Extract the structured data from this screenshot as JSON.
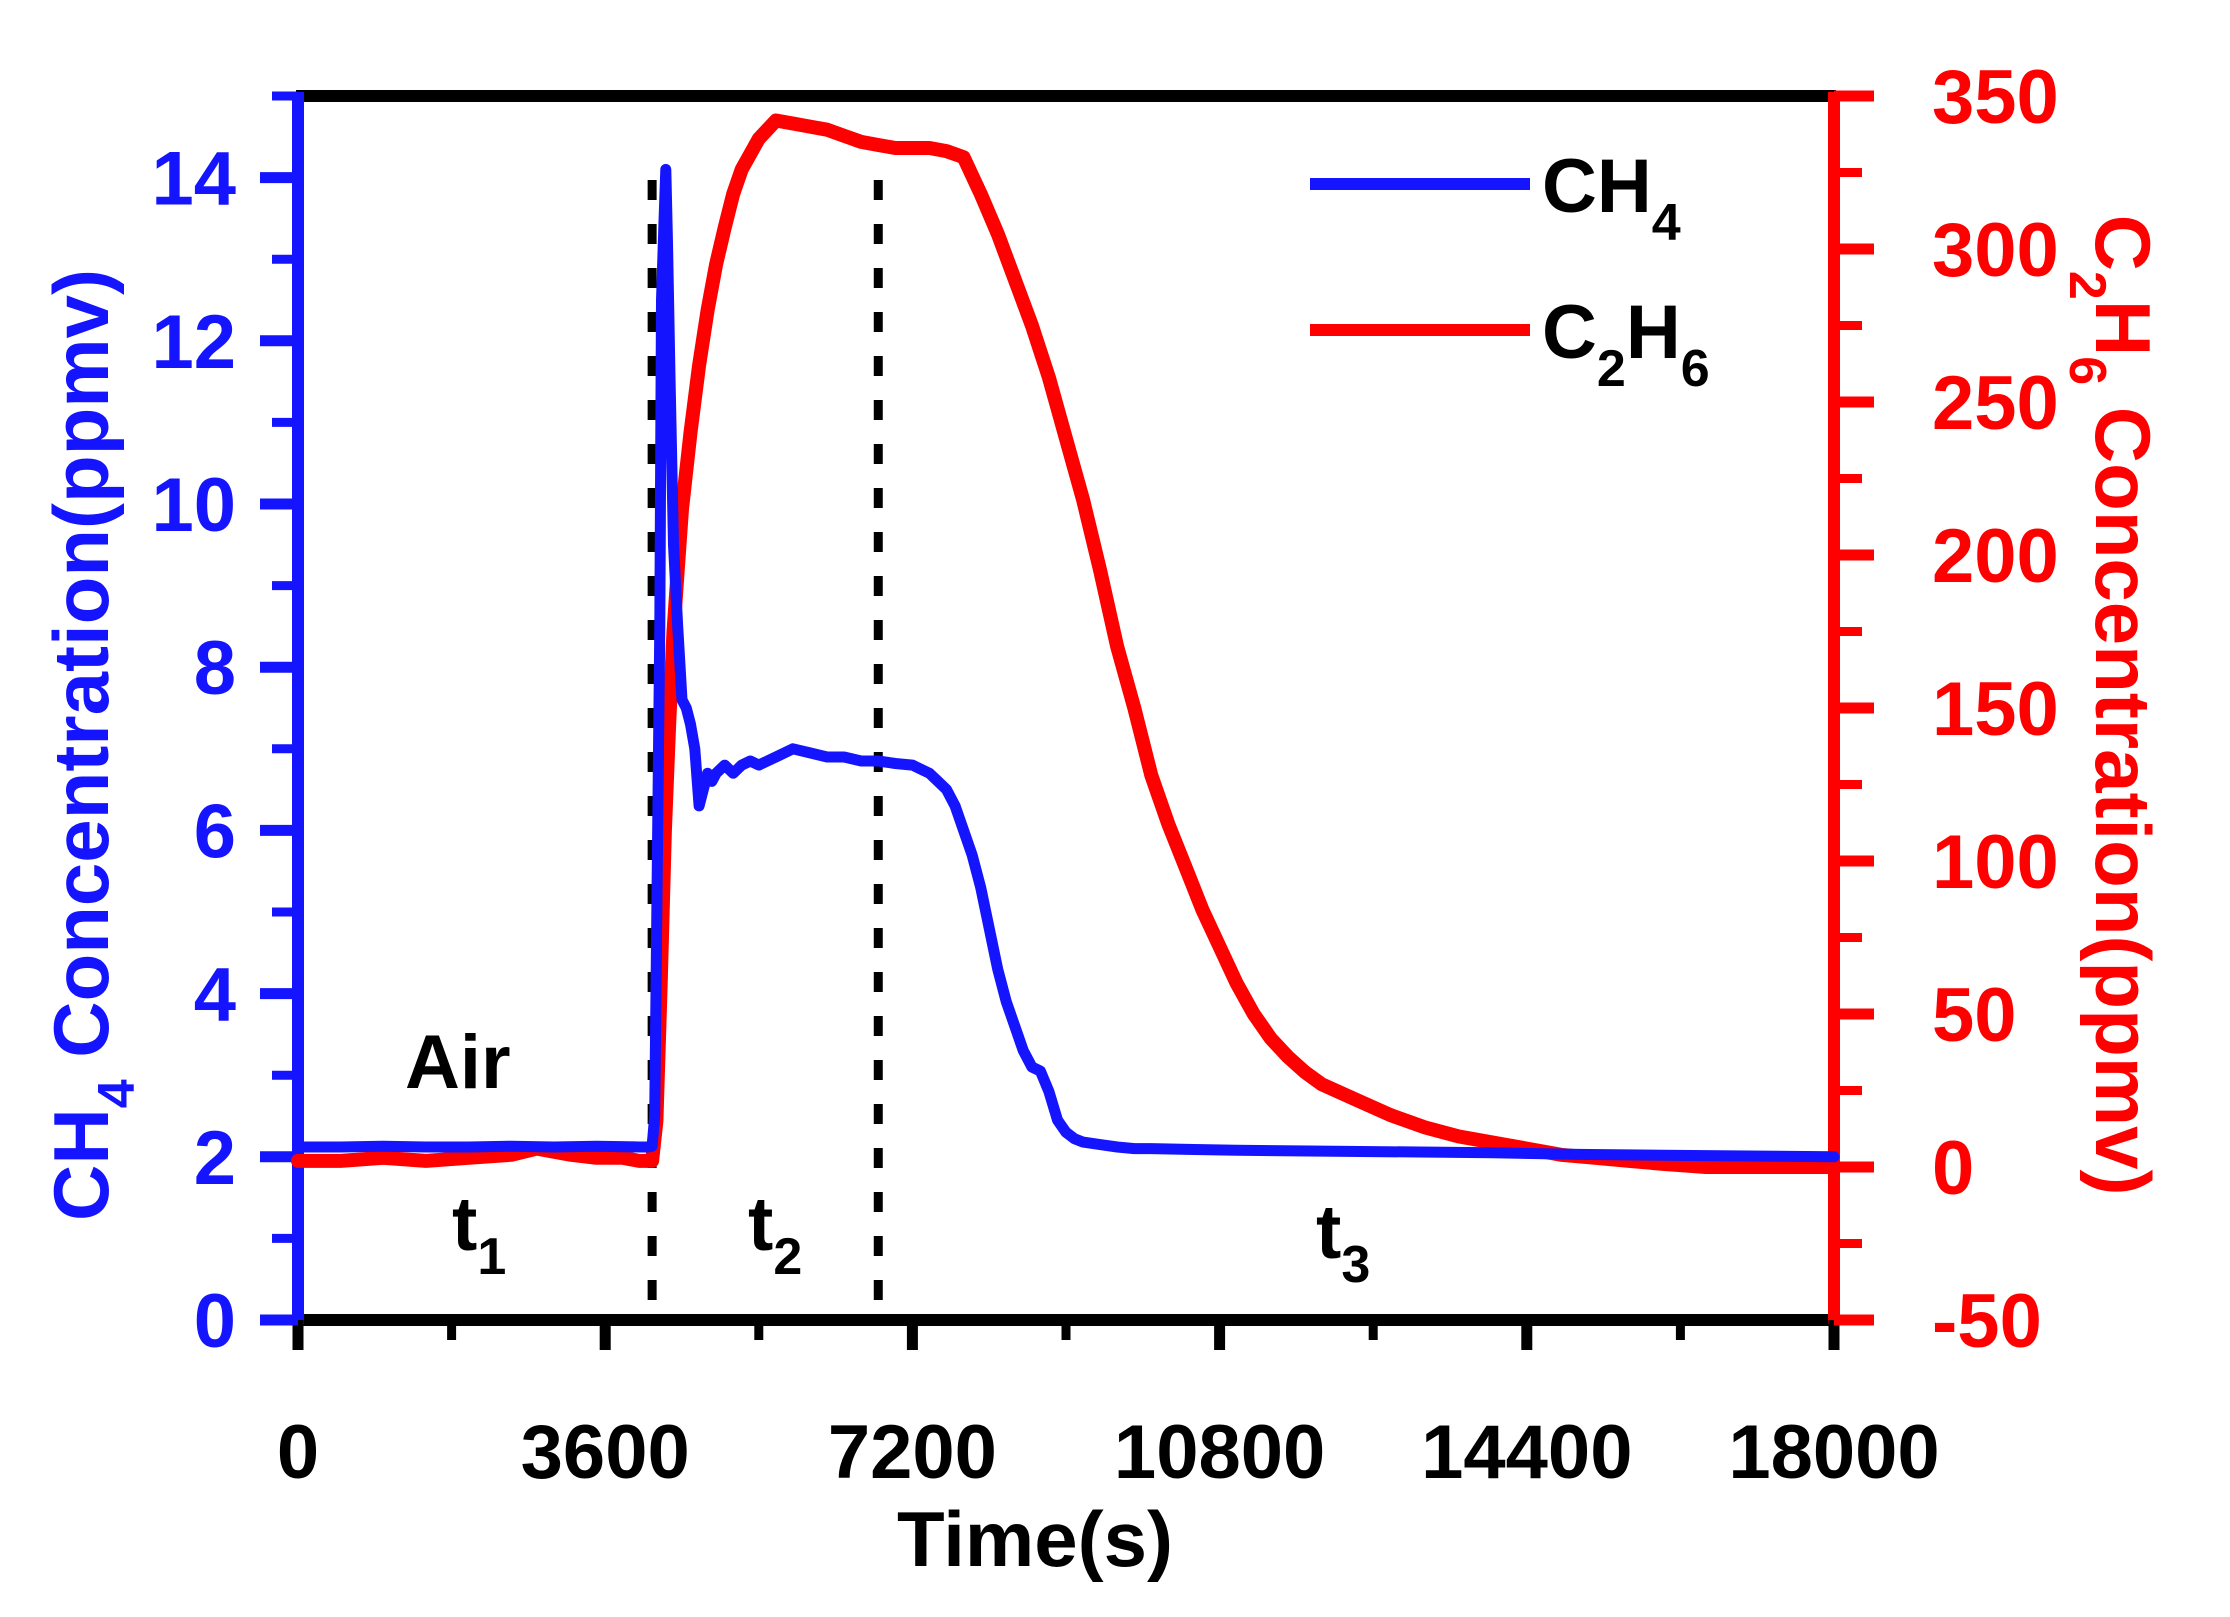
{
  "chart_data": {
    "type": "line",
    "xlabel": "Time(s)",
    "xlim": [
      0,
      18000
    ],
    "xticks": [
      "0",
      "3600",
      "7200",
      "10800",
      "14400",
      "18000"
    ],
    "xtick_values": [
      0,
      3600,
      7200,
      10800,
      14400,
      18000
    ],
    "left_axis": {
      "label_main": "CH",
      "label_sub": "4",
      "label_rest": " Concentration(ppmv)",
      "ylim": [
        0,
        15
      ],
      "ticks": [
        "0",
        "2",
        "4",
        "6",
        "8",
        "10",
        "12",
        "14"
      ],
      "tick_values": [
        0,
        2,
        4,
        6,
        8,
        10,
        12,
        14
      ],
      "color": "#1414ff"
    },
    "right_axis": {
      "label_c": "C",
      "label_sub1": "2",
      "label_h": "H",
      "label_sub2": "6",
      "label_rest": " Concentration(ppmv)",
      "ylim": [
        -50,
        350
      ],
      "ticks": [
        "-50",
        "0",
        "50",
        "100",
        "150",
        "200",
        "250",
        "300",
        "350"
      ],
      "tick_values": [
        -50,
        0,
        50,
        100,
        150,
        200,
        250,
        300,
        350
      ],
      "color": "#ff0000"
    },
    "series": [
      {
        "name": "CH4",
        "legend_main": "CH",
        "legend_sub": "4",
        "axis": "left",
        "color": "#1414ff",
        "x": [
          0,
          500,
          1000,
          1500,
          2000,
          2500,
          3000,
          3500,
          4000,
          4100,
          4150,
          4180,
          4200,
          4240,
          4260,
          4290,
          4310,
          4330,
          4360,
          4400,
          4450,
          4500,
          4550,
          4600,
          4650,
          4700,
          4750,
          4800,
          4850,
          4900,
          5000,
          5100,
          5200,
          5300,
          5400,
          5600,
          5800,
          6000,
          6200,
          6400,
          6600,
          6800,
          7000,
          7200,
          7300,
          7400,
          7500,
          7600,
          7700,
          7800,
          7900,
          8000,
          8100,
          8200,
          8300,
          8400,
          8500,
          8600,
          8700,
          8800,
          8900,
          9000,
          9100,
          9200,
          9400,
          9600,
          9800,
          10000,
          10500,
          11000,
          12000,
          13000,
          14000,
          15000,
          16000,
          17000,
          18000
        ],
        "y": [
          2.12,
          2.12,
          2.13,
          2.12,
          2.12,
          2.13,
          2.12,
          2.13,
          2.12,
          2.12,
          2.13,
          2.5,
          4.5,
          8.5,
          12.5,
          13.5,
          14.1,
          13.2,
          11.5,
          9.5,
          8.5,
          7.6,
          7.5,
          7.3,
          7.0,
          6.3,
          6.5,
          6.7,
          6.6,
          6.7,
          6.8,
          6.7,
          6.8,
          6.85,
          6.8,
          6.9,
          7.0,
          6.95,
          6.9,
          6.9,
          6.85,
          6.85,
          6.82,
          6.8,
          6.75,
          6.7,
          6.6,
          6.5,
          6.3,
          6.0,
          5.7,
          5.3,
          4.8,
          4.3,
          3.9,
          3.6,
          3.3,
          3.1,
          3.05,
          2.8,
          2.45,
          2.3,
          2.22,
          2.18,
          2.15,
          2.12,
          2.1,
          2.1,
          2.09,
          2.08,
          2.07,
          2.06,
          2.05,
          2.03,
          2.02,
          2.01,
          2.0
        ]
      },
      {
        "name": "C2H6",
        "legend_main": "C",
        "legend_sub1": "2",
        "legend_h": "H",
        "legend_sub2": "6",
        "axis": "right",
        "color": "#ff0000",
        "x": [
          0,
          500,
          1000,
          1500,
          2000,
          2500,
          2800,
          3000,
          3200,
          3500,
          3800,
          4000,
          4150,
          4200,
          4250,
          4300,
          4350,
          4400,
          4450,
          4500,
          4600,
          4700,
          4800,
          4900,
          5000,
          5100,
          5200,
          5400,
          5600,
          5800,
          6000,
          6200,
          6400,
          6600,
          6800,
          7000,
          7200,
          7400,
          7600,
          7800,
          8000,
          8200,
          8400,
          8600,
          8800,
          9000,
          9200,
          9400,
          9600,
          9800,
          10000,
          10200,
          10400,
          10600,
          10800,
          11000,
          11200,
          11400,
          11600,
          11800,
          12000,
          12400,
          12800,
          13200,
          13600,
          14000,
          14400,
          14800,
          15200,
          15600,
          16000,
          16500,
          17000,
          17500,
          18000
        ],
        "y": [
          2,
          2,
          3,
          2,
          3,
          4,
          6,
          5,
          4,
          3,
          3,
          2,
          2,
          15,
          60,
          110,
          145,
          175,
          195,
          215,
          240,
          262,
          280,
          295,
          307,
          318,
          326,
          336,
          342,
          341,
          340,
          339,
          337,
          335,
          334,
          333,
          333,
          333,
          332,
          330,
          318,
          305,
          290,
          275,
          258,
          238,
          218,
          195,
          170,
          150,
          128,
          112,
          98,
          84,
          72,
          60,
          50,
          42,
          36,
          31,
          27,
          22,
          17,
          13,
          10,
          8,
          6,
          4,
          3,
          2,
          1,
          0,
          0,
          0,
          0
        ]
      }
    ],
    "annotations": {
      "air": "Air",
      "t1_main": "t",
      "t1_sub": "1",
      "t2_main": "t",
      "t2_sub": "2",
      "t3_main": "t",
      "t3_sub": "3"
    },
    "vlines": [
      {
        "x": 4150,
        "style": "dotted"
      },
      {
        "x": 6800,
        "style": "dotted"
      }
    ],
    "legend_position": "top-right"
  }
}
